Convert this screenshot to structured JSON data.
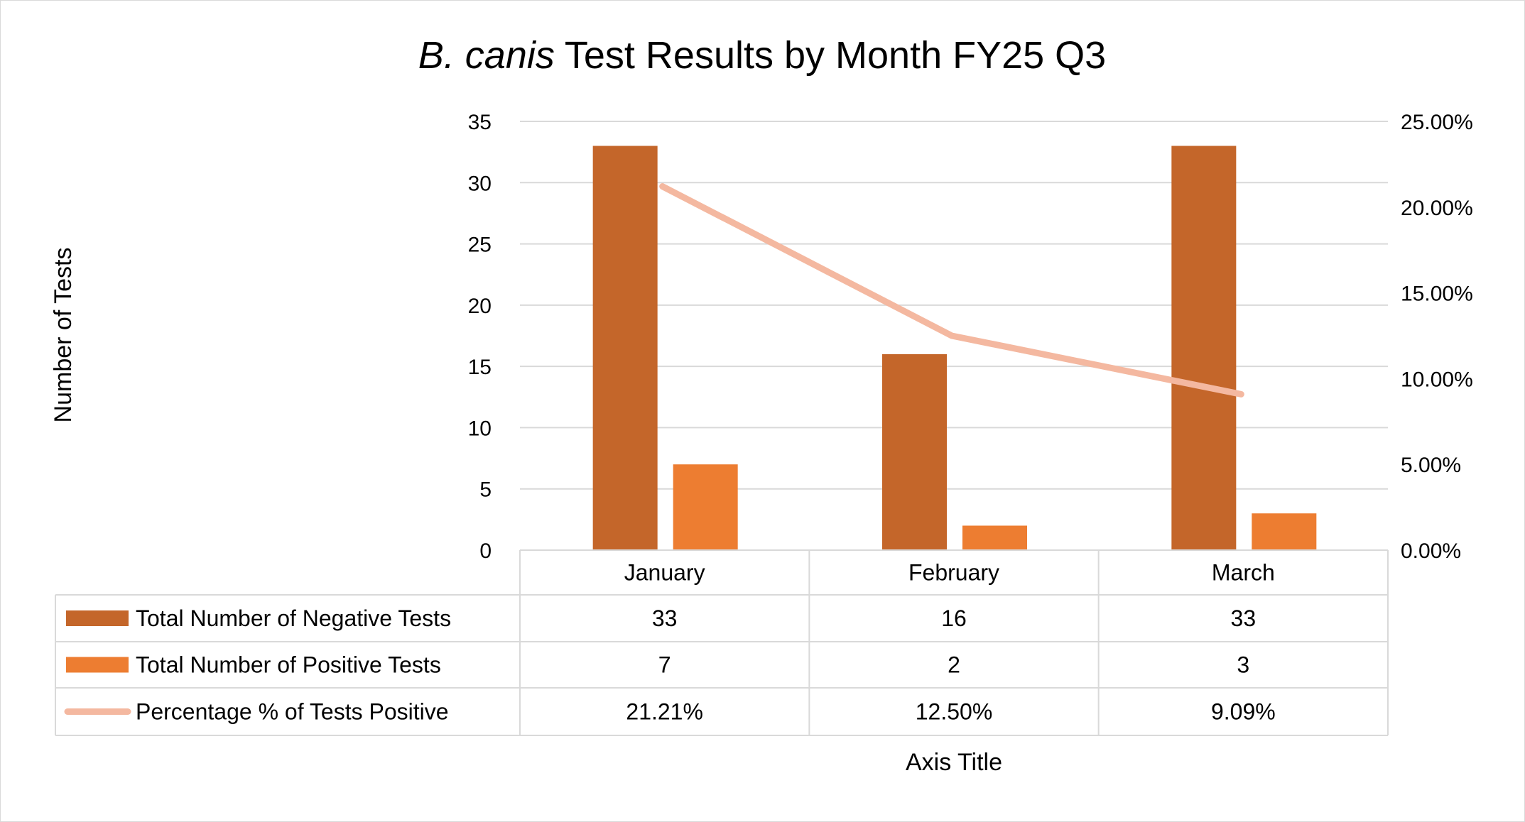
{
  "chart_data": {
    "type": "bar",
    "title_italic": "B. canis",
    "title_rest": " Test Results by Month FY25 Q3",
    "xlabel": "Axis Title",
    "ylabel": "Number of Tests",
    "categories": [
      "January",
      "February",
      "March"
    ],
    "ylim": [
      0,
      35
    ],
    "yticks": [
      0,
      5,
      10,
      15,
      20,
      25,
      30,
      35
    ],
    "y2lim": [
      0,
      25
    ],
    "y2ticks": [
      "0.00%",
      "5.00%",
      "10.00%",
      "15.00%",
      "20.00%",
      "25.00%"
    ],
    "grid": true,
    "legend": "data-table",
    "series": [
      {
        "name": "Total Number of Negative Tests",
        "type": "bar",
        "axis": "left",
        "values": [
          33,
          16,
          33
        ],
        "labels": [
          "33",
          "16",
          "33"
        ],
        "color": "#C4662A"
      },
      {
        "name": "Total Number of Positive Tests",
        "type": "bar",
        "axis": "right-none",
        "values": [
          7,
          2,
          3
        ],
        "labels": [
          "7",
          "2",
          "3"
        ],
        "color": "#ED7D31"
      },
      {
        "name": "Percentage % of Tests Positive",
        "type": "line",
        "axis": "right",
        "values": [
          21.21,
          12.5,
          9.09
        ],
        "labels": [
          "21.21%",
          "12.50%",
          "9.09%"
        ],
        "color": "#F4B8A0"
      }
    ]
  }
}
